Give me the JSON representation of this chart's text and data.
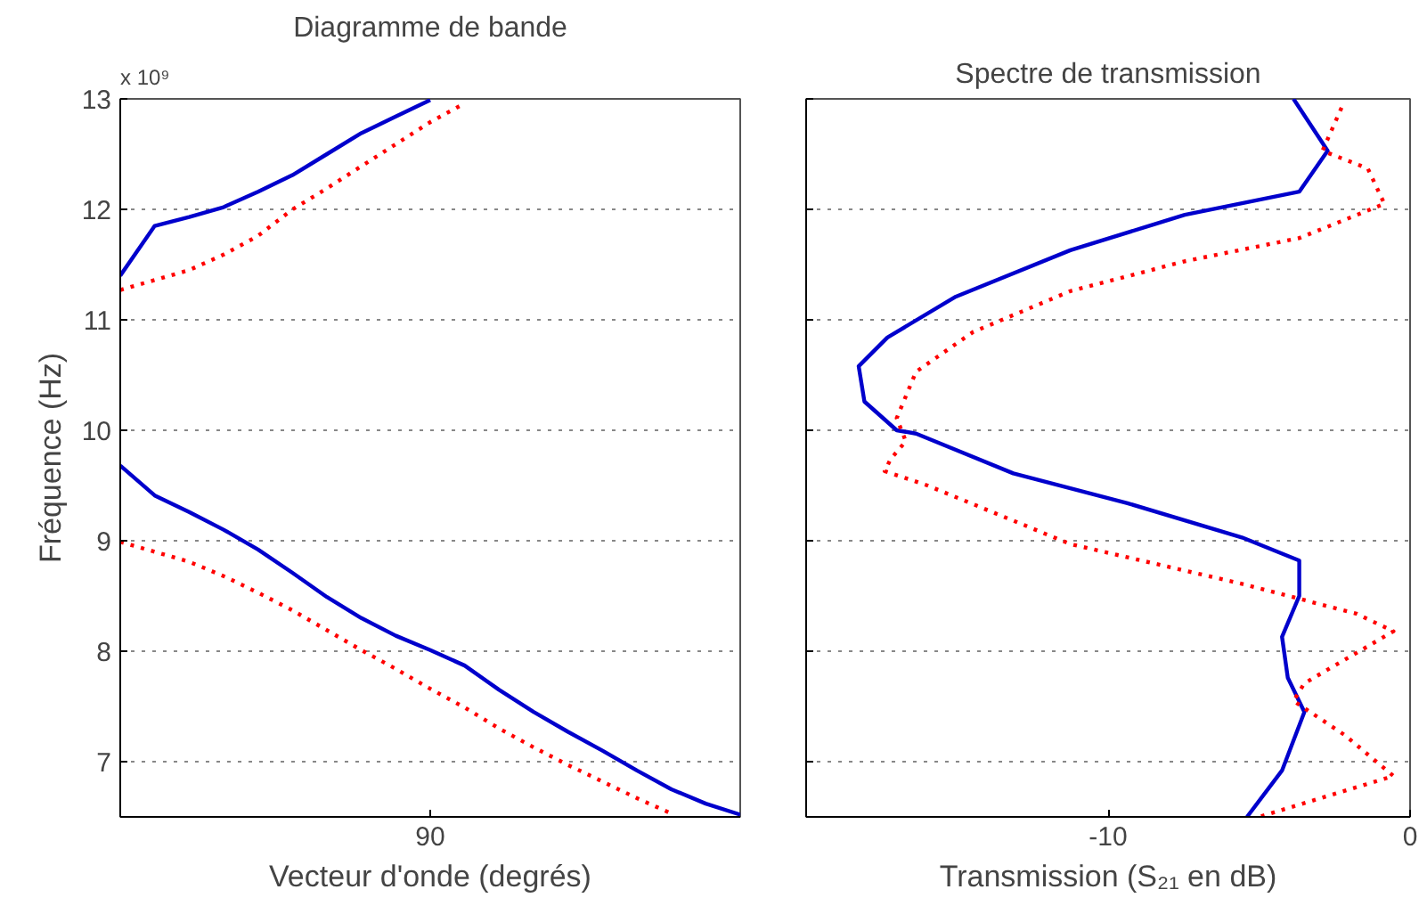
{
  "chart_data": [
    {
      "type": "line",
      "title": "Diagramme de bande",
      "xlabel": "Vecteur d'onde (degrés)",
      "ylabel": "Fréquence (Hz)",
      "annotations": [
        "x 10⁹"
      ],
      "categories": [
        null,
        null,
        null,
        null,
        null,
        null,
        null,
        null,
        null,
        "90",
        null,
        null,
        null,
        null,
        null,
        null,
        null,
        null,
        null
      ],
      "ylim": [
        6.5,
        13
      ],
      "yticks": [
        7,
        8,
        9,
        10,
        11,
        12,
        13
      ],
      "grid": "y",
      "series": [
        {
          "color": "#0000cc",
          "line_style": "solid",
          "values": [
            9.68,
            9.41,
            9.26,
            9.1,
            8.92,
            8.71,
            8.49,
            8.3,
            8.14,
            8.01,
            7.87,
            7.65,
            7.45,
            7.27,
            7.1,
            6.92,
            6.75,
            6.62,
            6.52
          ]
        },
        {
          "color": "#ff0000",
          "line_style": "dotted",
          "values": [
            8.99,
            8.9,
            8.81,
            8.68,
            8.53,
            8.37,
            8.19,
            8.01,
            7.84,
            7.66,
            7.49,
            7.3,
            7.13,
            6.97,
            6.82,
            6.67,
            6.53,
            null,
            null
          ]
        },
        {
          "color": "#0000cc",
          "line_style": "solid",
          "values": [
            11.4,
            11.85,
            11.93,
            12.02,
            12.16,
            12.31,
            12.5,
            12.69,
            12.84,
            12.99,
            null,
            null,
            null,
            null,
            null,
            null,
            null,
            null,
            null
          ]
        },
        {
          "color": "#ff0000",
          "line_style": "dotted",
          "values": [
            11.27,
            11.36,
            11.45,
            11.59,
            11.76,
            12.0,
            12.19,
            12.39,
            12.59,
            12.79,
            12.96,
            null,
            null,
            null,
            null,
            null,
            null,
            null,
            null
          ]
        }
      ]
    },
    {
      "type": "line",
      "title": "Spectre de transmission",
      "xlabel": "Transmission (S₂₁ en dB)",
      "xlim": [
        -20,
        0
      ],
      "xticks": [
        -10,
        0
      ],
      "ylim": [
        6.5,
        13
      ],
      "yticks": [
        7,
        8,
        9,
        10,
        11,
        12,
        13
      ],
      "tick_labels": "x",
      "grid": "y",
      "series": [
        {
          "color": "#0000cc",
          "line_style": "solid",
          "x": [
            -3.86,
            -2.73,
            -3.67,
            -7.46,
            -11.25,
            -15.04,
            -17.31,
            -18.26,
            -18.07,
            -17.0,
            -16.36,
            -13.14,
            -9.36,
            -5.57,
            -3.67,
            -3.67,
            -4.24,
            -4.05,
            -3.5,
            -4.24,
            -5.4
          ],
          "values": [
            13,
            12.53,
            12.16,
            11.95,
            11.63,
            11.21,
            10.84,
            10.58,
            10.26,
            10.0,
            9.97,
            9.61,
            9.34,
            9.03,
            8.82,
            8.5,
            8.13,
            7.76,
            7.45,
            6.92,
            6.5
          ]
        },
        {
          "color": "#ff0000",
          "line_style": "dotted",
          "x": [
            -2.27,
            -2.9,
            -1.4,
            -0.85,
            -3.67,
            -7.46,
            -11.25,
            -14.47,
            -16.36,
            -17.0,
            -16.7,
            -17.2,
            -17.4,
            -15.98,
            -11.25,
            -5.57,
            -1.78,
            -0.55,
            -3.5,
            -3.86,
            -2.16,
            -0.55,
            -5.0
          ],
          "values": [
            12.92,
            12.53,
            12.37,
            12.05,
            11.74,
            11.53,
            11.26,
            10.89,
            10.53,
            10.11,
            9.9,
            9.74,
            9.63,
            9.5,
            8.97,
            8.61,
            8.34,
            8.18,
            7.71,
            7.55,
            7.24,
            6.87,
            6.5
          ]
        }
      ]
    }
  ]
}
